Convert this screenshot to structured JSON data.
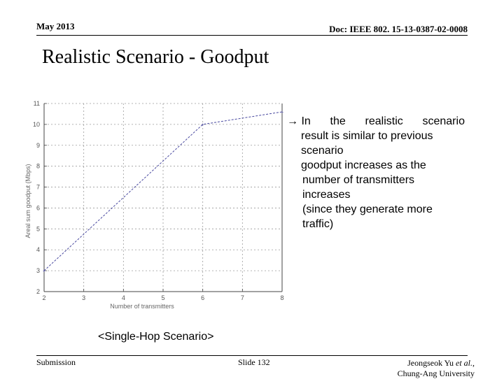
{
  "header": {
    "date": "May 2013",
    "doc": "Doc: IEEE 802. 15-13-0387-02-0008"
  },
  "slide": {
    "title": "Realistic Scenario - Goodput"
  },
  "bullet": {
    "arrow": "→",
    "words": [
      "In",
      "the",
      "realistic",
      "scenario"
    ],
    "line2": "result is similar to previous scenario",
    "line3": "goodput increases as the",
    "line4": "number of transmitters increases",
    "line5": "(since they generate more traffic)"
  },
  "caption": "<Single-Hop Scenario>",
  "footer": {
    "submission": "Submission",
    "slide": "Slide 132",
    "author_prefix": "Jeongseok Yu",
    "author_etal": "et al.",
    "author_suffix": ",",
    "org": "Chung-Ang University"
  },
  "chart_data": {
    "type": "line",
    "x": [
      2,
      6,
      8
    ],
    "series": [
      {
        "values": [
          3,
          10,
          10.6
        ]
      }
    ],
    "xlabel": "Number of transmitters",
    "ylabel": "Areal sum goodput (Mbps)",
    "xlim": [
      2,
      8
    ],
    "ylim": [
      2,
      11
    ],
    "xticks": [
      2,
      3,
      4,
      5,
      6,
      7,
      8
    ],
    "yticks": [
      2,
      3,
      4,
      5,
      6,
      7,
      8,
      9,
      10,
      11
    ],
    "grid": true,
    "line_color": "#4a4aa0"
  }
}
